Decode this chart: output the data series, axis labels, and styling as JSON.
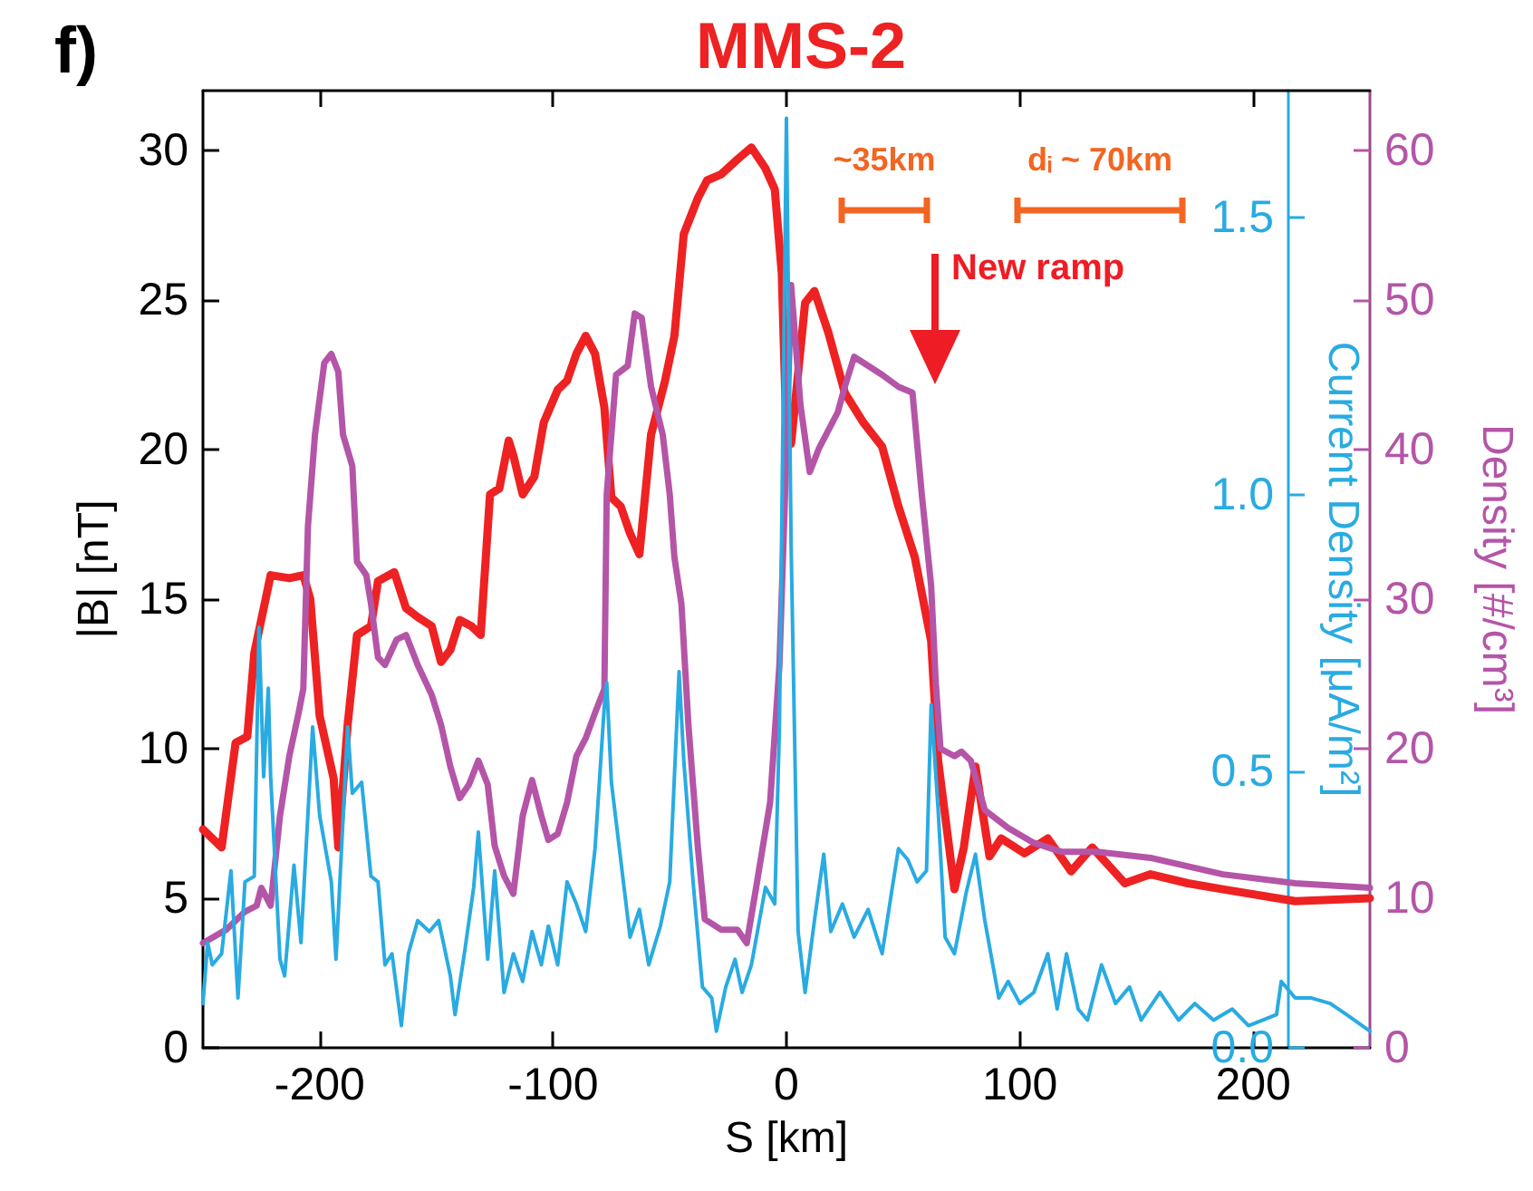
{
  "chart_data": {
    "type": "line",
    "title": "MMS-2",
    "xlabel": "S [km]",
    "ylabel": "|B| [nT]",
    "y2label": "Current Density [μA/m²]",
    "y3label": "Density [#/cm³]",
    "xlim": [
      -250,
      250
    ],
    "xticks": [
      -200,
      -100,
      0,
      100,
      200
    ],
    "ylim": [
      0,
      32
    ],
    "yticks": [
      0,
      5,
      10,
      15,
      20,
      25,
      30
    ],
    "y2lim": [
      0,
      1.73
    ],
    "y2ticks": [
      {
        "value": 0,
        "label": "0.0"
      },
      {
        "value": 0.5,
        "label": "0.5"
      },
      {
        "value": 1,
        "label": "1.0"
      },
      {
        "value": 1.5,
        "label": "1.5"
      }
    ],
    "y3lim": [
      0,
      64
    ],
    "y3ticks": [
      0,
      10,
      20,
      30,
      40,
      50,
      60
    ],
    "marker": "none",
    "line_style": "solid",
    "annotations": [
      "f)",
      "~35km",
      "dᵢ ~ 70km",
      "New ramp"
    ],
    "series": [
      {
        "color": "#ee2222",
        "x": [
          -250,
          -242,
          -236,
          -231,
          -228,
          -221,
          -213,
          -207,
          -204,
          -200,
          -194,
          -192,
          -188,
          -184,
          -178,
          -175,
          -168,
          -163,
          -158,
          -152,
          -148,
          -144,
          -140,
          -135,
          -131,
          -130,
          -127,
          -123,
          -119,
          -117,
          -113,
          -108,
          -104,
          -98,
          -94,
          -90,
          -86,
          -82,
          -78,
          -75,
          -71,
          -67,
          -63,
          -58,
          -52,
          -48,
          -44,
          -38,
          -34,
          -28,
          -21,
          -15,
          -9,
          -5,
          -2,
          0,
          2,
          8,
          12,
          18,
          25,
          33,
          41,
          48,
          55,
          56,
          62,
          65,
          72,
          76,
          81,
          87,
          92,
          102,
          112,
          122,
          131,
          145,
          156,
          172,
          187,
          218,
          250
        ],
        "values": [
          7.3,
          6.7,
          10.2,
          10.4,
          13.2,
          15.8,
          15.7,
          15.8,
          15,
          11.1,
          9,
          6.7,
          10.8,
          13.8,
          14.1,
          15.6,
          15.9,
          14.7,
          14.4,
          14.1,
          12.9,
          13.3,
          14.3,
          14.1,
          13.8,
          15,
          18.5,
          18.7,
          20.3,
          19.8,
          18.5,
          19.1,
          20.9,
          22,
          22.3,
          23.2,
          23.8,
          23.2,
          21.4,
          18.4,
          18.1,
          17.2,
          16.5,
          20.5,
          22.3,
          23.8,
          27.2,
          28.4,
          29,
          29.2,
          29.7,
          30.1,
          29.4,
          28.7,
          25.9,
          20.5,
          20.2,
          24.9,
          25.3,
          23.9,
          21.9,
          20.9,
          20.1,
          18.1,
          16.4,
          16,
          13.6,
          9.6,
          5.3,
          6.7,
          9.4,
          6.4,
          7,
          6.5,
          7,
          5.9,
          6.7,
          5.5,
          5.8,
          5.5,
          5.3,
          4.9,
          5
        ]
      },
      {
        "color": "#b455a8",
        "axis": "y3",
        "x": [
          -250,
          -240,
          -232,
          -227,
          -225,
          -221,
          -217,
          -213,
          -209,
          -207,
          -205,
          -202,
          -198,
          -195,
          -192,
          -190,
          -186,
          -184,
          -180,
          -178,
          -175,
          -172,
          -167,
          -163,
          -158,
          -152,
          -148,
          -144,
          -140,
          -136,
          -132,
          -128,
          -125,
          -121,
          -117,
          -113,
          -109,
          -105,
          -102,
          -98,
          -94,
          -90,
          -86,
          -82,
          -78,
          -77,
          -73,
          -68,
          -65,
          -62,
          -58,
          -53,
          -50,
          -48,
          -45,
          -42,
          -38,
          -35,
          -28,
          -21,
          -17,
          -13,
          -7,
          -3,
          0,
          2,
          6,
          10,
          14,
          22,
          25,
          29,
          33,
          41,
          48,
          54,
          58,
          62,
          64,
          66,
          72,
          75,
          79,
          85,
          95,
          106,
          118,
          133,
          156,
          187,
          218,
          250
        ],
        "values": [
          7,
          7.9,
          9.1,
          9.5,
          10.7,
          9.5,
          15.5,
          19.5,
          22.4,
          24,
          34.9,
          41,
          45.8,
          46.4,
          45.2,
          41,
          38.9,
          32.5,
          31.6,
          29.7,
          26.1,
          25.6,
          27.3,
          27.6,
          25.6,
          23.6,
          21.6,
          18.8,
          16.7,
          17.6,
          19.2,
          17.6,
          13.5,
          11.5,
          10.3,
          15.5,
          17.9,
          15.5,
          13.9,
          14.3,
          16.4,
          19.5,
          20.7,
          22.4,
          24,
          37,
          45,
          45.6,
          49.1,
          48.8,
          44.2,
          41,
          37,
          32.8,
          29.7,
          21.6,
          13.5,
          8.6,
          7.9,
          7.9,
          7,
          10.7,
          16.4,
          25.6,
          39.8,
          51,
          43,
          38.5,
          40.1,
          42.5,
          44.2,
          46.2,
          45.8,
          45,
          44.2,
          43.8,
          37,
          30.9,
          24.4,
          20,
          19.5,
          19.8,
          19.2,
          15.9,
          14.7,
          13.7,
          13.1,
          13.1,
          12.7,
          11.6,
          11,
          10.7
        ]
      },
      {
        "color": "#29abe2",
        "axis": "y2",
        "x": [
          -250,
          -248,
          -246,
          -242,
          -238,
          -235,
          -232,
          -228,
          -226,
          -224,
          -222,
          -221,
          -217,
          -215,
          -211,
          -208,
          -203,
          -200,
          -195,
          -193,
          -188,
          -186,
          -182,
          -178,
          -175,
          -172,
          -169,
          -165,
          -162,
          -158,
          -153,
          -149,
          -144,
          -142,
          -138,
          -134,
          -132,
          -128,
          -125,
          -121,
          -117,
          -113,
          -109,
          -105,
          -102,
          -98,
          -94,
          -90,
          -86,
          -82,
          -78,
          -77,
          -75,
          -71,
          -67,
          -63,
          -59,
          -54,
          -50,
          -46,
          -44,
          -40,
          -36,
          -32,
          -30,
          -26,
          -22,
          -19,
          -15,
          -9,
          -5,
          -3,
          0,
          2,
          5,
          8,
          12,
          16,
          19,
          24,
          29,
          35,
          41,
          45,
          48,
          52,
          56,
          60,
          62,
          65,
          68,
          72,
          77,
          81,
          85,
          91,
          95,
          100,
          106,
          112,
          116,
          120,
          125,
          129,
          135,
          141,
          147,
          152,
          160,
          168,
          175,
          183,
          191,
          198,
          210,
          212,
          218,
          225,
          233,
          240,
          250
        ],
        "values": [
          0.08,
          0.19,
          0.15,
          0.17,
          0.32,
          0.09,
          0.3,
          0.31,
          0.76,
          0.49,
          0.65,
          0.49,
          0.16,
          0.13,
          0.33,
          0.19,
          0.58,
          0.42,
          0.3,
          0.16,
          0.58,
          0.46,
          0.48,
          0.31,
          0.3,
          0.15,
          0.17,
          0.04,
          0.17,
          0.23,
          0.21,
          0.23,
          0.13,
          0.06,
          0.17,
          0.29,
          0.39,
          0.16,
          0.32,
          0.1,
          0.17,
          0.12,
          0.21,
          0.15,
          0.22,
          0.15,
          0.3,
          0.26,
          0.21,
          0.36,
          0.62,
          0.66,
          0.48,
          0.34,
          0.2,
          0.25,
          0.15,
          0.22,
          0.3,
          0.68,
          0.52,
          0.3,
          0.11,
          0.09,
          0.03,
          0.11,
          0.16,
          0.1,
          0.15,
          0.29,
          0.26,
          0.58,
          1.68,
          0.91,
          0.21,
          0.1,
          0.23,
          0.35,
          0.21,
          0.26,
          0.2,
          0.25,
          0.17,
          0.28,
          0.36,
          0.34,
          0.3,
          0.32,
          0.62,
          0.43,
          0.2,
          0.17,
          0.28,
          0.35,
          0.23,
          0.09,
          0.12,
          0.08,
          0.1,
          0.17,
          0.07,
          0.17,
          0.07,
          0.05,
          0.15,
          0.08,
          0.11,
          0.05,
          0.1,
          0.05,
          0.08,
          0.05,
          0.07,
          0.04,
          0.06,
          0.12,
          0.09,
          0.09,
          0.08,
          0.06,
          0.03
        ]
      }
    ]
  }
}
